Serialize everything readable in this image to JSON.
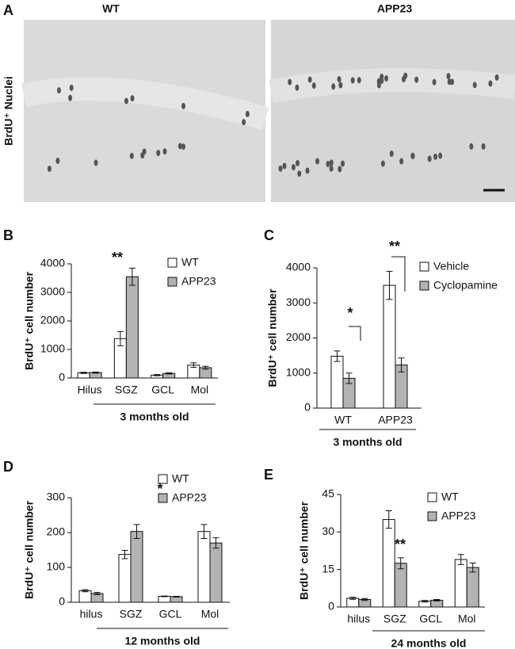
{
  "panel_a": {
    "label": "A",
    "titles": [
      "WT",
      "APP23"
    ],
    "ylabel": "BrdU⁺ Nuclei"
  },
  "chart_data": [
    {
      "type": "bar",
      "panel": "B",
      "ylabel": "BrdU⁺ cell number",
      "xlabel": "3 months old",
      "categories": [
        "Hilus",
        "SGZ",
        "GCL",
        "Mol"
      ],
      "series": [
        {
          "name": "WT",
          "color": "#ffffff",
          "values": [
            180,
            1380,
            100,
            450
          ],
          "errors": [
            20,
            250,
            20,
            80
          ]
        },
        {
          "name": "APP23",
          "color": "#b3b3b3",
          "values": [
            190,
            3550,
            160,
            360
          ],
          "errors": [
            20,
            300,
            20,
            50
          ]
        }
      ],
      "annotations": [
        "**"
      ],
      "ylim": [
        0,
        4000
      ],
      "yticks": [
        0,
        1000,
        2000,
        3000,
        4000
      ]
    },
    {
      "type": "bar",
      "panel": "C",
      "ylabel": "BrdU⁺ cell number",
      "xlabel": "3 months old",
      "categories": [
        "WT",
        "APP23"
      ],
      "series": [
        {
          "name": "Vehicle",
          "color": "#ffffff",
          "values": [
            1480,
            3500
          ],
          "errors": [
            150,
            400
          ]
        },
        {
          "name": "Cyclopamine",
          "color": "#b3b3b3",
          "values": [
            850,
            1230
          ],
          "errors": [
            150,
            200
          ]
        }
      ],
      "annotations": [
        "*",
        "**"
      ],
      "ylim": [
        0,
        4000
      ],
      "yticks": [
        0,
        1000,
        2000,
        3000,
        4000
      ]
    },
    {
      "type": "bar",
      "panel": "D",
      "ylabel": "BrdU⁺ cell number",
      "xlabel": "12 months old",
      "categories": [
        "hilus",
        "SGZ",
        "GCL",
        "Mol"
      ],
      "series": [
        {
          "name": "WT",
          "color": "#ffffff",
          "values": [
            33,
            137,
            17,
            203
          ],
          "errors": [
            3,
            12,
            1,
            20
          ]
        },
        {
          "name": "APP23",
          "color": "#b3b3b3",
          "values": [
            25,
            203,
            16,
            170
          ],
          "errors": [
            3,
            20,
            1,
            15
          ]
        }
      ],
      "annotations": [
        "*"
      ],
      "ylim": [
        0,
        300
      ],
      "yticks": [
        0,
        100,
        200,
        300
      ]
    },
    {
      "type": "bar",
      "panel": "E",
      "ylabel": "BrdU⁺ cell number",
      "xlabel": "24 months old",
      "categories": [
        "hilus",
        "SGZ",
        "GCL",
        "Mol"
      ],
      "series": [
        {
          "name": "WT",
          "color": "#ffffff",
          "values": [
            3.5,
            35,
            2.3,
            19
          ],
          "errors": [
            0.4,
            3.5,
            0.3,
            2
          ]
        },
        {
          "name": "APP23",
          "color": "#b3b3b3",
          "values": [
            3,
            17.5,
            2.7,
            15.8
          ],
          "errors": [
            0.4,
            2.2,
            0.3,
            1.8
          ]
        }
      ],
      "annotations": [
        "**"
      ],
      "ylim": [
        0,
        45
      ],
      "yticks": [
        0,
        15,
        30,
        45
      ]
    }
  ]
}
